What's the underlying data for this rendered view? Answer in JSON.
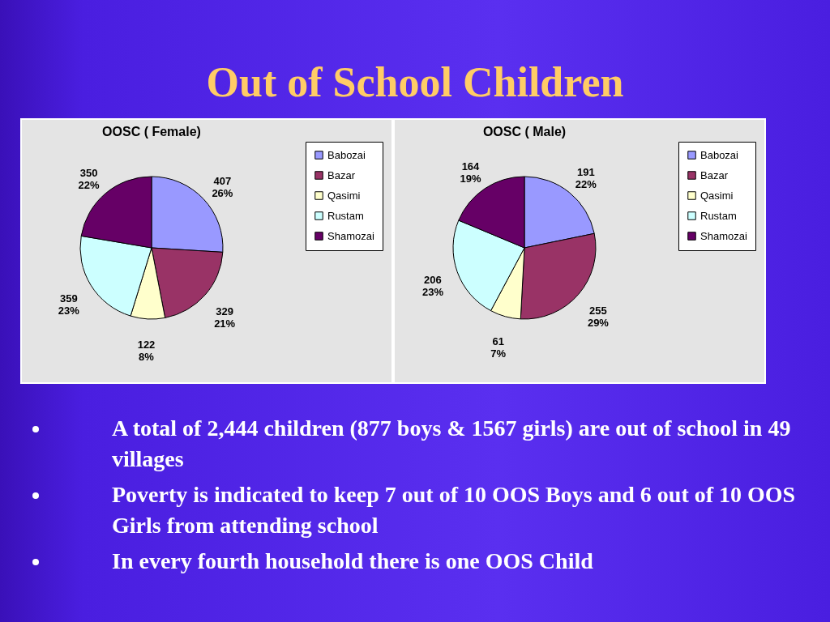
{
  "chart_data": [
    {
      "type": "other",
      "title": "Out of School Children"
    },
    {
      "type": "pie",
      "title": "OOSC ( Female)",
      "categories": [
        "Babozai",
        "Bazar",
        "Qasimi",
        "Rustam",
        "Shamozai"
      ],
      "values": [
        407,
        329,
        122,
        359,
        350
      ],
      "colors": [
        "#9999ff",
        "#993366",
        "#ffffcc",
        "#ccffff",
        "#660066"
      ],
      "value_labels": [
        "407\n26%",
        "329\n21%",
        "122\n8%",
        "359\n23%",
        "350\n22%"
      ],
      "legend": "right"
    },
    {
      "type": "pie",
      "title": "OOSC ( Male)",
      "categories": [
        "Babozai",
        "Bazar",
        "Qasimi",
        "Rustam",
        "Shamozai"
      ],
      "values": [
        191,
        255,
        61,
        206,
        164
      ],
      "colors": [
        "#9999ff",
        "#993366",
        "#ffffcc",
        "#ccffff",
        "#660066"
      ],
      "value_labels": [
        "191\n22%",
        "255\n29%",
        "61\n7%",
        "206\n23%",
        "164\n19%"
      ],
      "legend": "right"
    },
    {
      "type": "other",
      "annotations": [
        "A total of 2,444 children (877 boys & 1567 girls) are out of school in 49 villages",
        "Poverty is indicated to keep 7 out of 10 OOS Boys and 6 out of 10 OOS Girls from attending school",
        "In every fourth household there is one OOS Child"
      ]
    }
  ]
}
